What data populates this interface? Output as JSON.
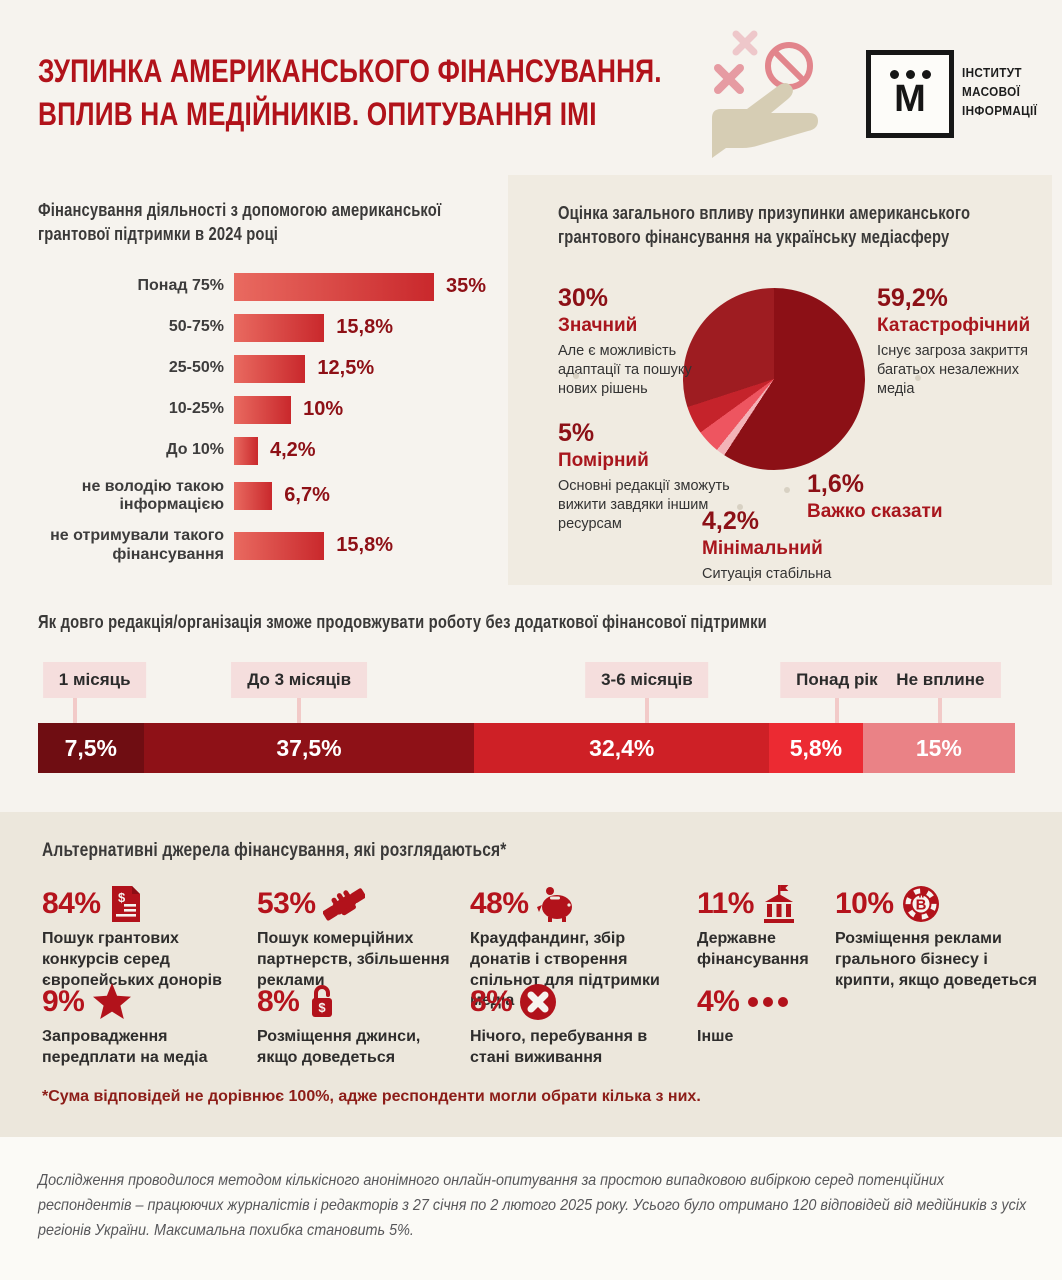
{
  "colors": {
    "page_bg": "#f6f3ee",
    "pie_panel_bg": "#f0ebe1",
    "alt_panel_bg": "#ece7dc",
    "footer_bg": "#fbfaf6",
    "title_red": "#b1121a",
    "value_red": "#8e1016",
    "icon_red": "#b2121b",
    "bar_gradient_from": "#e96a60",
    "bar_gradient_to": "#c9282c",
    "label_box_bg": "#f5dedd",
    "connector_pink": "#f2cac8",
    "hand_beige": "#d6cdb4",
    "prohibition_pink": "#e2858c"
  },
  "header": {
    "title_line1": "ЗУПИНКА АМЕРИКАНСЬКОГО ФІНАНСУВАННЯ.",
    "title_line2": "ВПЛИВ НА МЕДІЙНИКІВ. ОПИТУВАННЯ ІМІ",
    "logo_mark": "М",
    "logo_org": [
      "ІНСТИТУТ",
      "МАСОВОЇ",
      "ІНФОРМАЦІЇ"
    ]
  },
  "chart_data": [
    {
      "type": "bar",
      "orientation": "horizontal",
      "title": "Фінансування діяльності з допомогою американської грантової підтримки в 2024 році",
      "categories": [
        "Понад 75%",
        "50-75%",
        "25-50%",
        "10-25%",
        "До 10%",
        "не володію такою інформацією",
        "не отримували такого фінансування"
      ],
      "values": [
        35,
        15.8,
        12.5,
        10,
        4.2,
        6.7,
        15.8
      ],
      "value_labels": [
        "35%",
        "15,8%",
        "12,5%",
        "10%",
        "4,2%",
        "6,7%",
        "15,8%"
      ],
      "xlim": [
        0,
        35
      ],
      "grid": false
    },
    {
      "type": "pie",
      "title": "Оцінка загального впливу призупинки американського грантового фінансування на українську медіасферу",
      "start_angle_deg": 0,
      "direction": "clockwise",
      "slices": [
        {
          "value": 59.2,
          "pct_label": "59,2%",
          "name": "Катастрофічний",
          "desc": "Існує загроза закриття багатьох незалежних медіа",
          "color": "#8c1016"
        },
        {
          "value": 1.6,
          "pct_label": "1,6%",
          "name": "Важко сказати",
          "desc": "",
          "color": "#f3b3b8"
        },
        {
          "value": 4.2,
          "pct_label": "4,2%",
          "name": "Мінімальний",
          "desc": "Ситуація стабільна",
          "color": "#ee5560"
        },
        {
          "value": 5,
          "pct_label": "5%",
          "name": "Помірний",
          "desc": "Основні редакції зможуть вижити завдяки іншим ресурсам",
          "color": "#c5232b"
        },
        {
          "value": 30,
          "pct_label": "30%",
          "name": "Значний",
          "desc": "Але є можливість адаптації та пошуку нових рішень",
          "color": "#9e1c21"
        }
      ]
    },
    {
      "type": "bar",
      "subtype": "stacked-horizontal",
      "title": "Як довго редакція/організація зможе продовжувати роботу без додаткової фінансової підтримки",
      "categories": [
        "1 місяць",
        "До 3 місяців",
        "3-6 місяців",
        "Понад рік",
        "Не вплине"
      ],
      "values": [
        7.5,
        37.5,
        32.4,
        5.8,
        15
      ],
      "value_labels": [
        "7,5%",
        "37,5%",
        "32,4%",
        "5,8%",
        "15%"
      ],
      "colors": [
        "#6f0d12",
        "#8e1117",
        "#ce2026",
        "#ec2a32",
        "#ea8286"
      ]
    },
    {
      "type": "pictogram",
      "title": "Альтернативні джерела фінансування, які розглядаються*",
      "items": [
        {
          "pct": "84%",
          "value": 84,
          "icon": "grant-document",
          "label": "Пошук грантових конкурсів серед європейських донорів"
        },
        {
          "pct": "53%",
          "value": 53,
          "icon": "handshake",
          "label": "Пошук комерційних партнерств, збільшення реклами"
        },
        {
          "pct": "48%",
          "value": 48,
          "icon": "piggy-bank",
          "label": "Краудфандинг, збір донатів і створення спільнот для підтримки медіа"
        },
        {
          "pct": "11%",
          "value": 11,
          "icon": "bank-building",
          "label": "Державне фінансування"
        },
        {
          "pct": "10%",
          "value": 10,
          "icon": "casino-chip",
          "label": "Розміщення реклами грального бізнесу і крипти, якщо доведеться"
        },
        {
          "pct": "9%",
          "value": 9,
          "icon": "star",
          "label": "Запровадження передплати на медіа"
        },
        {
          "pct": "8%",
          "value": 8,
          "icon": "padlock",
          "label": "Розміщення джинси, якщо доведеться"
        },
        {
          "pct": "8%",
          "value": 8,
          "icon": "x-circle",
          "label": "Нічого, перебування в стані виживання"
        },
        {
          "pct": "4%",
          "value": 4,
          "icon": "ellipsis",
          "label": "Інше"
        }
      ],
      "footnote": "*Сума відповідей не дорівнює 100%, адже респонденти могли обрати кілька з них."
    }
  ],
  "footer": {
    "methodology": "Дослідження проводилося методом кількісного анонімного онлайн-опитування за простою випадковою вибіркою серед потенційних респондентів – працюючих журналістів і редакторів з 27 січня по 2 лютого 2025 року. Усього було отримано 120 відповідей від медійників з усіх регіонів України. Максимальна похибка становить 5%."
  }
}
